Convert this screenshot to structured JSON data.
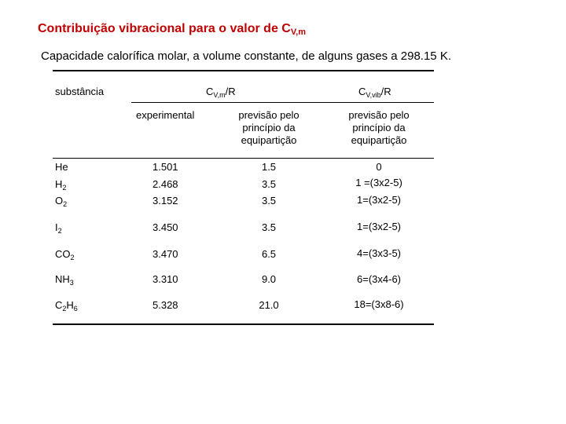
{
  "title": {
    "main": "Contribuição vibracional para o valor de C",
    "sub": "V,m"
  },
  "subtitle": "Capacidade calorífica molar, a volume constante, de alguns gases a 298.15 K.",
  "header": {
    "col1": "substância",
    "col2_main": "C",
    "col2_sub": "V,m",
    "col2_tail": "/R",
    "col4_main": "C",
    "col4_sub": "V,vib",
    "col4_tail": "/R",
    "experimental": "experimental",
    "prev1_l1": "previsão pelo",
    "prev1_l2": "princípio da",
    "prev1_l3": "equipartição",
    "prev2_l1": "previsão pelo",
    "prev2_l2": "princípio da",
    "prev2_l3": "equipartição"
  },
  "rows": [
    {
      "s_main": "He",
      "s_sub": "",
      "s_main2": "",
      "s_sub2": "",
      "exp": "1.501",
      "pred": "1.5",
      "vib": "0"
    },
    {
      "s_main": "H",
      "s_sub": "2",
      "s_main2": "",
      "s_sub2": "",
      "exp": "2.468",
      "pred": "3.5",
      "vib": "1 =(3x2-5)"
    },
    {
      "s_main": "O",
      "s_sub": "2",
      "s_main2": "",
      "s_sub2": "",
      "exp": "3.152",
      "pred": "3.5",
      "vib": "1=(3x2-5)"
    },
    {
      "s_main": "I",
      "s_sub": "2",
      "s_main2": "",
      "s_sub2": "",
      "exp": "3.450",
      "pred": "3.5",
      "vib": "1=(3x2-5)"
    },
    {
      "s_main": "CO",
      "s_sub": "2",
      "s_main2": "",
      "s_sub2": "",
      "exp": "3.470",
      "pred": "6.5",
      "vib": "4=(3x3-5)"
    },
    {
      "s_main": "NH",
      "s_sub": "3",
      "s_main2": "",
      "s_sub2": "",
      "exp": "3.310",
      "pred": "9.0",
      "vib": "6=(3x4-6)"
    },
    {
      "s_main": "C",
      "s_sub": "2",
      "s_main2": "H",
      "s_sub2": "6",
      "exp": "5.328",
      "pred": "21.0",
      "vib": "18=(3x8-6)"
    }
  ]
}
